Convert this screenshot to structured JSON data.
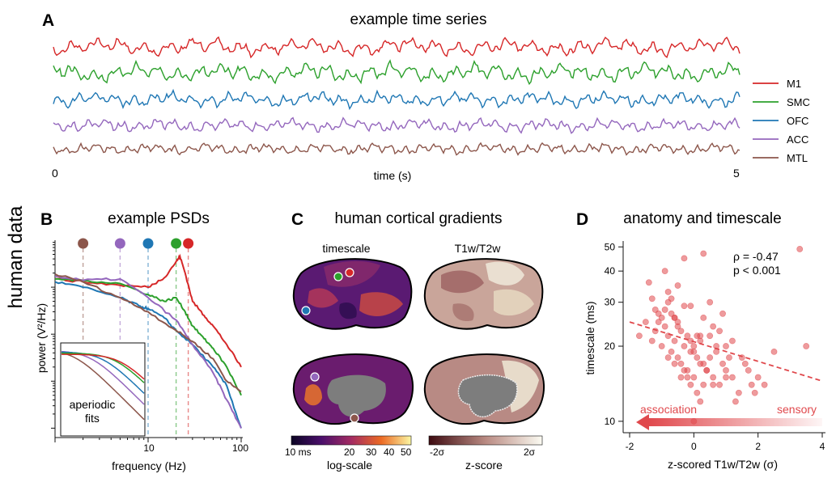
{
  "side_label": "human data",
  "panelA": {
    "letter": "A",
    "title": "example time series",
    "xlabel": "time (s)",
    "x_start": "0",
    "x_end": "5",
    "legend": [
      {
        "name": "M1",
        "color": "#d62728"
      },
      {
        "name": "SMC",
        "color": "#2ca02c"
      },
      {
        "name": "OFC",
        "color": "#1f77b4"
      },
      {
        "name": "ACC",
        "color": "#9467bd"
      },
      {
        "name": "MTL",
        "color": "#8c564b"
      }
    ]
  },
  "panelB": {
    "letter": "B",
    "title": "example PSDs",
    "xlabel": "frequency (Hz)",
    "ylabel": "power (V²/Hz)",
    "xticks": [
      "10",
      "100"
    ],
    "inset_label_1": "aperiodic",
    "inset_label_2": "fits",
    "knees": [
      {
        "region": "MTL",
        "hz": 2.0,
        "color": "#8c564b"
      },
      {
        "region": "ACC",
        "hz": 5.0,
        "color": "#9467bd"
      },
      {
        "region": "OFC",
        "hz": 10.0,
        "color": "#1f77b4"
      },
      {
        "region": "SMC",
        "hz": 20.0,
        "color": "#2ca02c"
      },
      {
        "region": "M1",
        "hz": 27.0,
        "color": "#d62728"
      }
    ]
  },
  "panelC": {
    "letter": "C",
    "title": "human cortical gradients",
    "col1": "timescale",
    "col2": "T1w/T2w",
    "cbar1_ticks": [
      "10 ms",
      "20",
      "30",
      "40",
      "50"
    ],
    "cbar1_label": "log-scale",
    "cbar2_ticks": [
      "-2σ",
      "2σ"
    ],
    "cbar2_label": "z-score"
  },
  "panelD": {
    "letter": "D",
    "title": "anatomy and timescale",
    "rho_text": "ρ = -0.47",
    "p_text": "p < 0.001",
    "arrow_left": "association",
    "arrow_right": "sensory",
    "color": "#e0484c"
  },
  "chart_data": [
    {
      "type": "line",
      "title": "example time series",
      "xlabel": "time (s)",
      "ylabel": "",
      "xlim": [
        0,
        5
      ],
      "series": [
        {
          "name": "M1"
        },
        {
          "name": "SMC"
        },
        {
          "name": "OFC"
        },
        {
          "name": "ACC"
        },
        {
          "name": "MTL"
        }
      ]
    },
    {
      "type": "line",
      "title": "example PSDs",
      "xlabel": "frequency (Hz)",
      "ylabel": "power (V²/Hz)",
      "x_scale": "log",
      "y_scale": "log",
      "xlim": [
        1,
        100
      ],
      "series": [
        {
          "name": "M1",
          "x": [
            1,
            2,
            5,
            10,
            15,
            20,
            22,
            25,
            30,
            40,
            50,
            70,
            100
          ],
          "y": [
            1.5,
            1.3,
            1.1,
            1.0,
            1.6,
            3.5,
            4.5,
            2.0,
            0.5,
            0.25,
            0.15,
            0.06,
            0.02
          ]
        },
        {
          "name": "SMC",
          "x": [
            1,
            2,
            5,
            10,
            15,
            20,
            25,
            30,
            40,
            50,
            70,
            100
          ],
          "y": [
            1.5,
            1.4,
            1.2,
            0.7,
            0.5,
            0.6,
            0.3,
            0.15,
            0.08,
            0.05,
            0.02,
            0.005
          ]
        },
        {
          "name": "OFC",
          "x": [
            1,
            2,
            5,
            8,
            10,
            15,
            20,
            30,
            50,
            70,
            100
          ],
          "y": [
            1.3,
            1.0,
            0.6,
            0.4,
            0.35,
            0.22,
            0.12,
            0.06,
            0.02,
            0.008,
            0.001
          ]
        },
        {
          "name": "ACC",
          "x": [
            1,
            2,
            5,
            10,
            20,
            30,
            50,
            70,
            100
          ],
          "y": [
            1.7,
            1.4,
            1.5,
            0.6,
            0.2,
            0.06,
            0.015,
            0.004,
            0.001
          ]
        },
        {
          "name": "MTL",
          "x": [
            1,
            2,
            5,
            10,
            20,
            30,
            50,
            70,
            100
          ],
          "y": [
            1.9,
            1.3,
            0.6,
            0.3,
            0.12,
            0.07,
            0.03,
            0.01,
            0.006
          ]
        }
      ]
    },
    {
      "type": "scatter",
      "title": "anatomy and timescale",
      "xlabel": "z-scored T1w/T2w (σ)",
      "ylabel": "timescale (ms)",
      "xlim": [
        -2,
        4
      ],
      "ylim": [
        9,
        52
      ],
      "y_scale": "log",
      "xticks": [
        -2,
        0,
        2,
        4
      ],
      "yticks": [
        10,
        20,
        30,
        40,
        50
      ],
      "fit_line": {
        "x": [
          -2,
          4
        ],
        "y": [
          25,
          14.5
        ]
      },
      "annotation": [
        "ρ = -0.47",
        "p < 0.001"
      ],
      "x": [
        -1.4,
        -1.2,
        -1.1,
        -1.0,
        -0.9,
        -0.9,
        -0.8,
        -0.8,
        -0.7,
        -0.7,
        -0.6,
        -0.6,
        -0.5,
        -0.5,
        -0.4,
        -0.4,
        -0.3,
        -0.3,
        -0.2,
        -0.2,
        -0.1,
        -0.1,
        0.0,
        0.0,
        0.1,
        0.1,
        0.2,
        0.2,
        0.3,
        0.3,
        0.4,
        0.5,
        0.6,
        0.7,
        0.8,
        0.9,
        1.0,
        1.1,
        1.2,
        1.4,
        1.6,
        1.8,
        2.0,
        2.5,
        3.3,
        3.5,
        -1.7,
        -1.5,
        -1.3,
        -1.2,
        -1.0,
        -0.9,
        -0.8,
        -0.7,
        -0.6,
        -0.5,
        -0.4,
        -0.3,
        -0.2,
        -0.1,
        0.0,
        0.1,
        0.2,
        0.3,
        0.4,
        0.5,
        0.6,
        0.7,
        0.8,
        1.0,
        1.2,
        1.3,
        1.5,
        1.7,
        1.9,
        2.2,
        -0.3,
        0.3,
        -0.8,
        0.9,
        -1.1,
        -0.5,
        0.5,
        0.0,
        -1.3,
        -0.1,
        0.6,
        1.0,
        -0.6,
        0.2
      ],
      "y": [
        36,
        28,
        27,
        26,
        40,
        24,
        30,
        22,
        27,
        19,
        26,
        21,
        25,
        18,
        23,
        17,
        20,
        16,
        22,
        15,
        19,
        14,
        20,
        15,
        18,
        13,
        21,
        12,
        17,
        14,
        16,
        18,
        15,
        19,
        14,
        17,
        16,
        18,
        15,
        13,
        17,
        14,
        15,
        19,
        49,
        20,
        22,
        25,
        21,
        23,
        20,
        28,
        18,
        31,
        17,
        24,
        15,
        29,
        16,
        21,
        19,
        22,
        17,
        26,
        16,
        30,
        14,
        20,
        23,
        15,
        21,
        12,
        18,
        16,
        13,
        14,
        45,
        47,
        33,
        27,
        25,
        35,
        22,
        10,
        31,
        29,
        24,
        20,
        26,
        22
      ]
    }
  ]
}
